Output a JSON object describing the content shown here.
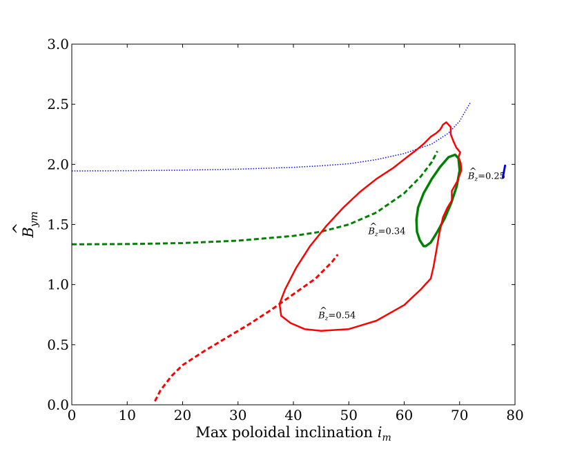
{
  "chart_data": {
    "type": "line",
    "xlabel": "Max poloidal inclination i_m",
    "xlabel_text": "Max poloidal inclination",
    "xlabel_var": "i",
    "xlabel_sub": "m",
    "ylabel_sym": "B",
    "ylabel_sub": "ym",
    "xlim": [
      0,
      80
    ],
    "ylim": [
      0.0,
      3.0
    ],
    "xticks": [
      0,
      10,
      20,
      30,
      40,
      50,
      60,
      70,
      80
    ],
    "xtick_labels": [
      "0",
      "10",
      "20",
      "30",
      "40",
      "50",
      "60",
      "70",
      "80"
    ],
    "yticks": [
      0.0,
      0.5,
      1.0,
      1.5,
      2.0,
      2.5,
      3.0
    ],
    "ytick_labels": [
      "0.0",
      "0.5",
      "1.0",
      "1.5",
      "2.0",
      "2.5",
      "3.0"
    ],
    "grid": false,
    "colors": {
      "red": "#ff0000",
      "green": "#008000",
      "blue": "#0000ff"
    },
    "series": [
      {
        "name": "Bz=0.25 dotted",
        "color": "#0000ff",
        "style": "dotted",
        "width": 1.5,
        "points": [
          [
            0,
            1.945
          ],
          [
            10,
            1.947
          ],
          [
            20,
            1.952
          ],
          [
            30,
            1.96
          ],
          [
            40,
            1.975
          ],
          [
            45,
            1.988
          ],
          [
            50,
            2.005
          ],
          [
            55,
            2.04
          ],
          [
            60,
            2.09
          ],
          [
            65,
            2.17
          ],
          [
            68,
            2.26
          ],
          [
            70,
            2.36
          ],
          [
            72,
            2.52
          ]
        ]
      },
      {
        "name": "Bz=0.25 solid",
        "color": "#0000ff",
        "style": "solid",
        "width": 3,
        "points": [
          [
            77.8,
            1.89
          ],
          [
            78.2,
            1.99
          ]
        ]
      },
      {
        "name": "Bz=0.34 dashed",
        "color": "#008000",
        "style": "dashed",
        "width": 3,
        "points": [
          [
            0,
            1.335
          ],
          [
            10,
            1.337
          ],
          [
            20,
            1.345
          ],
          [
            30,
            1.365
          ],
          [
            40,
            1.405
          ],
          [
            45,
            1.44
          ],
          [
            50,
            1.5
          ],
          [
            55,
            1.6
          ],
          [
            60,
            1.76
          ],
          [
            63,
            1.9
          ],
          [
            65,
            2.02
          ],
          [
            66,
            2.11
          ]
        ]
      },
      {
        "name": "Bz=0.34 closed loop",
        "color": "#008000",
        "style": "solid",
        "width": 3.5,
        "points": [
          [
            63.5,
            1.32
          ],
          [
            62.8,
            1.37
          ],
          [
            62.3,
            1.44
          ],
          [
            62.2,
            1.54
          ],
          [
            62.5,
            1.64
          ],
          [
            63.5,
            1.76
          ],
          [
            65,
            1.88
          ],
          [
            66.5,
            1.98
          ],
          [
            68,
            2.06
          ],
          [
            69.2,
            2.08
          ],
          [
            69.8,
            2.05
          ],
          [
            70,
            1.95
          ],
          [
            69.5,
            1.82
          ],
          [
            68.5,
            1.68
          ],
          [
            67.3,
            1.55
          ],
          [
            66,
            1.44
          ],
          [
            64.8,
            1.35
          ],
          [
            63.9,
            1.32
          ],
          [
            63.5,
            1.32
          ]
        ]
      },
      {
        "name": "Bz=0.54 dashed",
        "color": "#ff0000",
        "style": "dashed",
        "width": 3,
        "points": [
          [
            15,
            0.03
          ],
          [
            16,
            0.12
          ],
          [
            18,
            0.24
          ],
          [
            20,
            0.33
          ],
          [
            24,
            0.45
          ],
          [
            28,
            0.56
          ],
          [
            32,
            0.67
          ],
          [
            36,
            0.79
          ],
          [
            40,
            0.92
          ],
          [
            44,
            1.05
          ],
          [
            47,
            1.19
          ],
          [
            48,
            1.25
          ]
        ]
      },
      {
        "name": "Bz=0.54 closed loop",
        "color": "#ff0000",
        "style": "solid",
        "width": 2.5,
        "points": [
          [
            37.8,
            0.74
          ],
          [
            39.5,
            0.68
          ],
          [
            42,
            0.63
          ],
          [
            45,
            0.615
          ],
          [
            50,
            0.63
          ],
          [
            55,
            0.7
          ],
          [
            60,
            0.83
          ],
          [
            63,
            0.96
          ],
          [
            64,
            1.01
          ],
          [
            64.8,
            1.05
          ],
          [
            65.3,
            1.15
          ],
          [
            65.8,
            1.28
          ],
          [
            66.3,
            1.42
          ],
          [
            67,
            1.56
          ],
          [
            67.8,
            1.64
          ],
          [
            68.6,
            1.7
          ],
          [
            68.6,
            1.78
          ],
          [
            69.6,
            1.86
          ],
          [
            70.3,
            1.95
          ],
          [
            70.2,
            2.01
          ],
          [
            69.8,
            2.06
          ],
          [
            70.1,
            2.1
          ],
          [
            69.4,
            2.14
          ],
          [
            68.9,
            2.19
          ],
          [
            68.4,
            2.25
          ],
          [
            68.4,
            2.31
          ],
          [
            67.6,
            2.35
          ],
          [
            67,
            2.33
          ],
          [
            66.5,
            2.29
          ],
          [
            65.8,
            2.26
          ],
          [
            64.8,
            2.23
          ],
          [
            63.5,
            2.17
          ],
          [
            62.2,
            2.12
          ],
          [
            60.5,
            2.06
          ],
          [
            58,
            1.97
          ],
          [
            55,
            1.88
          ],
          [
            52,
            1.77
          ],
          [
            49,
            1.64
          ],
          [
            46,
            1.49
          ],
          [
            43,
            1.32
          ],
          [
            40.5,
            1.14
          ],
          [
            38.5,
            0.96
          ],
          [
            37.5,
            0.84
          ],
          [
            37.8,
            0.74
          ]
        ]
      }
    ],
    "annotations": [
      {
        "sym": "B",
        "label": "z",
        "value": "=0.25",
        "x": 71.5,
        "y": 1.88
      },
      {
        "sym": "B",
        "label": "z",
        "value": "=0.34",
        "x": 53.5,
        "y": 1.42
      },
      {
        "sym": "B",
        "label": "z",
        "value": "=0.54",
        "x": 44.5,
        "y": 0.72
      }
    ]
  }
}
